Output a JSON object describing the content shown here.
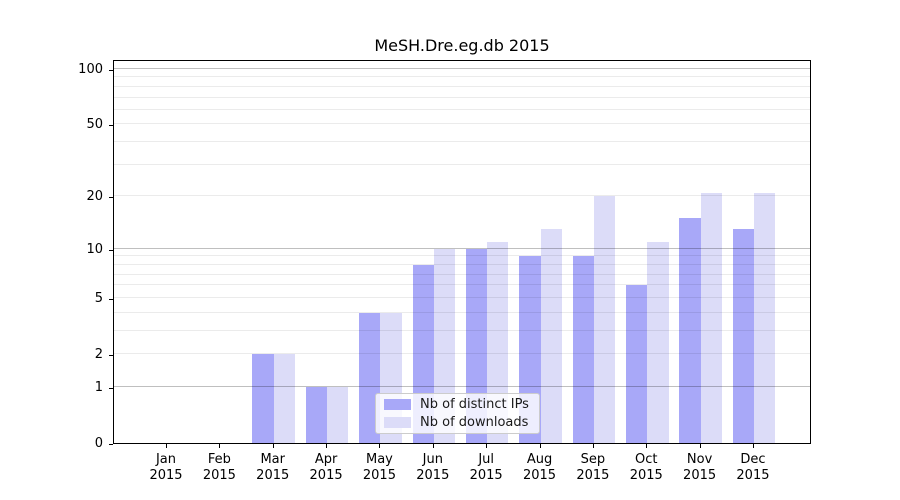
{
  "window": {
    "background": "#ffffff"
  },
  "chart_data": {
    "type": "bar",
    "title": "MeSH.Dre.eg.db 2015",
    "categories": [
      "Jan",
      "Feb",
      "Mar",
      "Apr",
      "May",
      "Jun",
      "Jul",
      "Aug",
      "Sep",
      "Oct",
      "Nov",
      "Dec"
    ],
    "category_year": "2015",
    "series": [
      {
        "name": "Nb of distinct IPs",
        "color": "#a8a8f8",
        "values": [
          0,
          0,
          2,
          1,
          4,
          8,
          10,
          9,
          9,
          6,
          15,
          13
        ]
      },
      {
        "name": "Nb of downloads",
        "color": "#dcdcf8",
        "values": [
          0,
          0,
          2,
          1,
          4,
          10,
          11,
          13,
          20,
          11,
          21,
          21
        ]
      }
    ],
    "xlabel": "",
    "ylabel": "",
    "yscale": "log1p",
    "ylim": [
      0,
      113.3
    ],
    "y_ticks": [
      0,
      1,
      2,
      5,
      10,
      20,
      50,
      100
    ],
    "grid": true,
    "grid_major_values": [
      1,
      10,
      100
    ],
    "grid_minor_values": [
      2,
      3,
      4,
      5,
      6,
      7,
      8,
      9,
      20,
      30,
      40,
      50,
      60,
      70,
      80,
      90
    ],
    "legend_position": "inside lower center"
  },
  "colors": {
    "grid_major": "rgba(0,0,0,0.25)",
    "grid_minor": "rgba(0,0,0,0.08)",
    "axis_spine": "#000000",
    "legend_border": "#cccccc"
  }
}
